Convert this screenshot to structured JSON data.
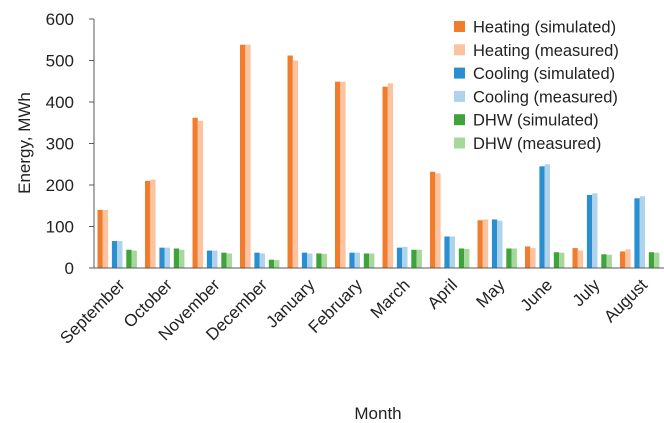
{
  "chart_data": {
    "type": "bar",
    "title": "",
    "xlabel": "Month",
    "ylabel": "Energy, MWh",
    "ylim": [
      0,
      600
    ],
    "yticks": [
      0,
      100,
      200,
      300,
      400,
      500,
      600
    ],
    "grid": false,
    "legend_position": "top-right",
    "categories": [
      "September",
      "October",
      "November",
      "December",
      "January",
      "February",
      "March",
      "April",
      "May",
      "June",
      "July",
      "August"
    ],
    "series": [
      {
        "name": "Heating (simulated)",
        "color": "#F07C2E",
        "values": [
          140,
          210,
          362,
          538,
          512,
          449,
          437,
          232,
          115,
          52,
          48,
          40
        ]
      },
      {
        "name": "Heating (measured)",
        "color": "#FBC3A0",
        "values": [
          140,
          213,
          355,
          538,
          500,
          449,
          445,
          228,
          117,
          48,
          42,
          45
        ]
      },
      {
        "name": "Cooling (simulated)",
        "color": "#2A8FD0",
        "values": [
          65,
          49,
          42,
          37,
          37,
          37,
          49,
          76,
          117,
          245,
          176,
          168
        ]
      },
      {
        "name": "Cooling (measured)",
        "color": "#AED3EA",
        "values": [
          65,
          49,
          42,
          35,
          35,
          37,
          51,
          76,
          114,
          250,
          180,
          173
        ]
      },
      {
        "name": "DHW (simulated)",
        "color": "#3EA33A",
        "values": [
          44,
          47,
          37,
          20,
          35,
          35,
          44,
          47,
          47,
          38,
          33,
          38
        ]
      },
      {
        "name": "DHW (measured)",
        "color": "#A6D79B",
        "values": [
          42,
          44,
          35,
          19,
          34,
          35,
          44,
          46,
          47,
          37,
          32,
          37
        ]
      }
    ]
  }
}
